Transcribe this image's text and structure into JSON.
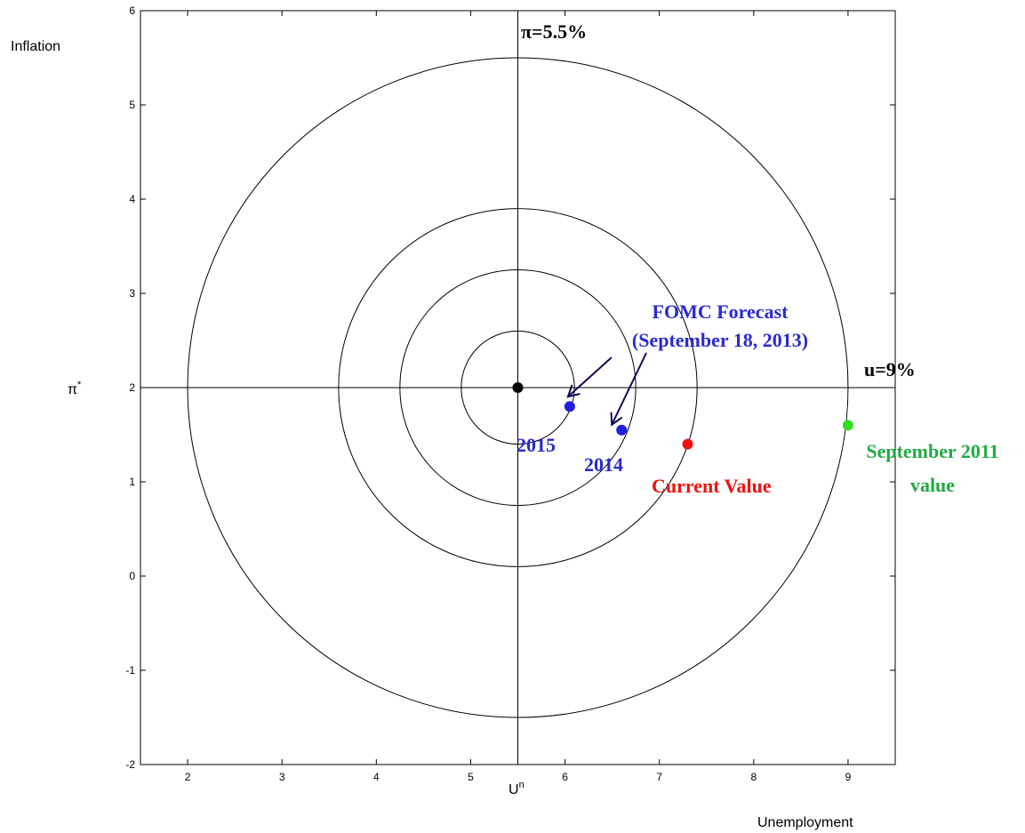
{
  "chart_data": {
    "type": "scatter",
    "xlim": [
      1.5,
      9.5
    ],
    "ylim": [
      -2,
      6
    ],
    "x_ticks": [
      2,
      3,
      4,
      5,
      6,
      7,
      8,
      9
    ],
    "y_ticks": [
      -2,
      -1,
      0,
      1,
      2,
      3,
      4,
      5,
      6
    ],
    "x_ticks_text": [
      "2",
      "3",
      "4",
      "5",
      "6",
      "7",
      "8",
      "9"
    ],
    "y_ticks_text": [
      "-2",
      "-1",
      "0",
      "1",
      "2",
      "3",
      "4",
      "5",
      "6"
    ],
    "grid": false,
    "ylabel": "Inflation",
    "xlabel": "Unemployment",
    "center": {
      "x": 5.5,
      "y": 2,
      "x_label": "U",
      "x_label_sup": "n",
      "y_label": "π",
      "y_label_sup": "*"
    },
    "circle_radii": [
      0.6,
      1.25,
      1.9,
      3.5
    ],
    "crosshair_labels": {
      "vertical": "π=5.5%",
      "horizontal": "u=9%"
    },
    "points": [
      {
        "x": 5.5,
        "y": 2.0,
        "color": "#000000"
      },
      {
        "x": 6.05,
        "y": 1.8,
        "color": "#1f1fe0"
      },
      {
        "x": 6.6,
        "y": 1.55,
        "color": "#1f1fe0"
      },
      {
        "x": 7.3,
        "y": 1.4,
        "color": "#ee1111"
      },
      {
        "x": 9.0,
        "y": 1.6,
        "color": "#33dd22"
      }
    ],
    "annotations": {
      "forecast_line1": "FOMC Forecast",
      "forecast_line2": "(September 18, 2013)",
      "label_2015": "2015",
      "label_2014": "2014",
      "current": "Current Value",
      "sep2011_line1": "September 2011",
      "sep2011_line2": "value"
    },
    "colors": {
      "forecast": "#2a2ad0",
      "arrow": "#0b0b5a",
      "current": "#ee1111",
      "sep2011": "#22aa44"
    }
  }
}
